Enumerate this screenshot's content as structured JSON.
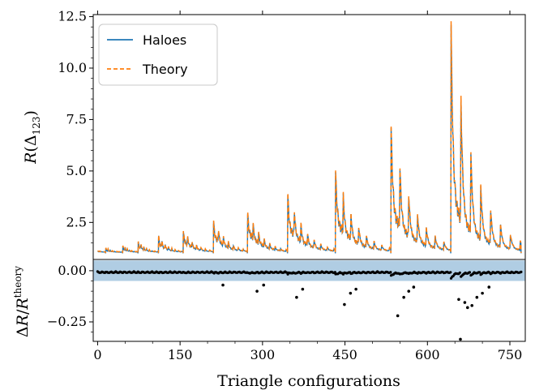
{
  "chart_data": {
    "type": "line",
    "x_range": [
      -8,
      778
    ],
    "xlabel": "Triangle configurations",
    "xticks": [
      0,
      150,
      300,
      450,
      600,
      750
    ],
    "xtick_labels": [
      "0",
      "150",
      "300",
      "450",
      "600",
      "750"
    ],
    "top_panel": {
      "ylabel": "R(Δ123)",
      "ylim": [
        0.7,
        12.6
      ],
      "yticks": [
        2.5,
        5.0,
        7.5,
        10.0,
        12.5
      ],
      "ytick_labels": [
        "2.5",
        "5.0",
        "7.5",
        "10.0",
        "12.5"
      ],
      "legend": {
        "position": "top-left",
        "entries": [
          {
            "name": "Haloes",
            "color": "#1f77b4",
            "style": "solid"
          },
          {
            "name": "Theory",
            "color": "#ff7f0e",
            "style": "dashed"
          }
        ]
      },
      "blocks": [
        {
          "start": 0,
          "end": 14,
          "step": 0.05,
          "peak": 1.1
        },
        {
          "start": 15,
          "end": 45,
          "step": 0.1,
          "peak": 1.25
        },
        {
          "start": 46,
          "end": 73,
          "step": 0.2,
          "peak": 1.35
        },
        {
          "start": 74,
          "end": 110,
          "step": 0.35,
          "peak": 1.55
        },
        {
          "start": 111,
          "end": 155,
          "step": 0.5,
          "peak": 1.85
        },
        {
          "start": 156,
          "end": 210,
          "step": 0.7,
          "peak": 2.05
        },
        {
          "start": 211,
          "end": 272,
          "step": 1.0,
          "peak": 2.55
        },
        {
          "start": 273,
          "end": 345,
          "step": 1.3,
          "peak": 2.95
        },
        {
          "start": 346,
          "end": 432,
          "step": 1.6,
          "peak": 3.85
        },
        {
          "start": 433,
          "end": 533,
          "step": 1.9,
          "peak": 4.95
        },
        {
          "start": 534,
          "end": 642,
          "step": 2.3,
          "peak": 7.1
        },
        {
          "start": 643,
          "end": 770,
          "step": 2.8,
          "peak": 12.1
        }
      ]
    },
    "bottom_panel": {
      "ylabel": "ΔR/R^theory",
      "ylim": [
        -0.345,
        0.055
      ],
      "yticks": [
        0.0,
        -0.25
      ],
      "ytick_labels": [
        "0.00",
        "−0.25"
      ],
      "band": [
        -0.05,
        0.05
      ],
      "band_color": "#b0cde3",
      "outliers": [
        {
          "x": 228,
          "y": -0.07
        },
        {
          "x": 290,
          "y": -0.1
        },
        {
          "x": 302,
          "y": -0.07
        },
        {
          "x": 362,
          "y": -0.13
        },
        {
          "x": 373,
          "y": -0.09
        },
        {
          "x": 449,
          "y": -0.165
        },
        {
          "x": 460,
          "y": -0.11
        },
        {
          "x": 470,
          "y": -0.09
        },
        {
          "x": 546,
          "y": -0.22
        },
        {
          "x": 557,
          "y": -0.13
        },
        {
          "x": 566,
          "y": -0.1
        },
        {
          "x": 575,
          "y": -0.08
        },
        {
          "x": 660,
          "y": -0.335
        },
        {
          "x": 657,
          "y": -0.14
        },
        {
          "x": 668,
          "y": -0.155
        },
        {
          "x": 673,
          "y": -0.18
        },
        {
          "x": 681,
          "y": -0.17
        },
        {
          "x": 690,
          "y": -0.13
        },
        {
          "x": 700,
          "y": -0.11
        },
        {
          "x": 712,
          "y": -0.08
        }
      ]
    }
  }
}
